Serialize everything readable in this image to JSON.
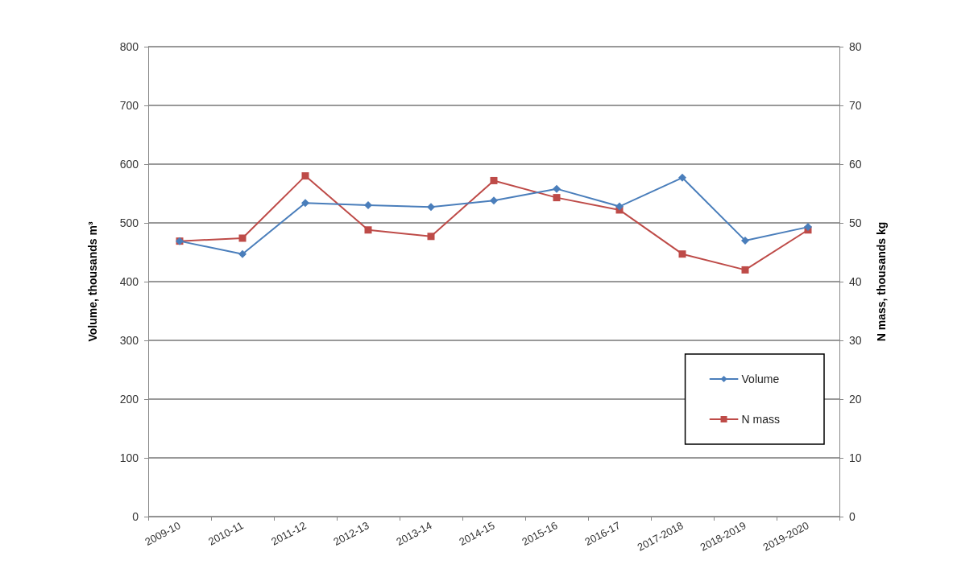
{
  "chart_data": {
    "type": "line",
    "ylabel": "Volume, thousands m³",
    "y2label": "N mass, thousands kg",
    "categories": [
      "2009-10",
      "2010-11",
      "2011-12",
      "2012-13",
      "2013-14",
      "2014-15",
      "2015-16",
      "2016-17",
      "2017-2018",
      "2018-2019",
      "2019-2020"
    ],
    "series": [
      {
        "name": "Volume",
        "color": "#4a7ebb",
        "marker": "diamond",
        "values": [
          469,
          447,
          534,
          530,
          527,
          538,
          558,
          528,
          577,
          470,
          493
        ]
      },
      {
        "name": "N mass",
        "color": "#be4b48",
        "marker": "square",
        "axis": "y2",
        "values": [
          46.9,
          47.4,
          58.0,
          48.8,
          47.7,
          57.2,
          54.3,
          52.2,
          44.7,
          42.0,
          48.8
        ]
      }
    ],
    "ylim": [
      0,
      800
    ],
    "yticks": [
      0,
      100,
      200,
      300,
      400,
      500,
      600,
      700,
      800
    ],
    "y2lim": [
      0,
      80
    ],
    "y2ticks": [
      0,
      10,
      20,
      30,
      40,
      50,
      60,
      70,
      80
    ],
    "grid": "y",
    "legend": "bottom right"
  }
}
